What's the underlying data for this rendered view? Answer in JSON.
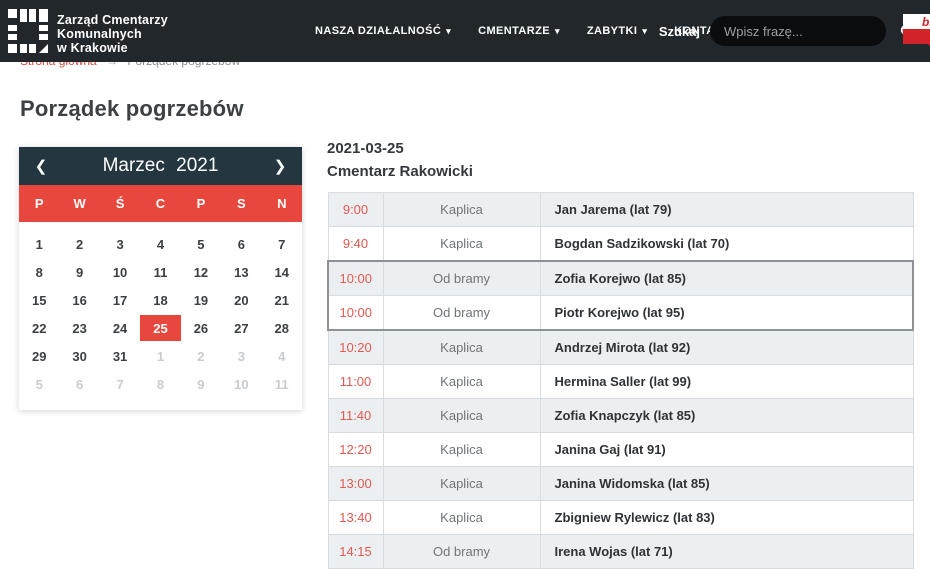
{
  "colors": {
    "header_bg": "#22272b",
    "calendar_header_bg": "#243640",
    "accent_red": "#e8473d",
    "time_red": "#e05a50",
    "row_alt_bg": "#eceff1",
    "highlight_border": "#8e9296",
    "bip_red": "#d2232a"
  },
  "header": {
    "logo_lines": [
      "Zarząd Cmentarzy",
      "Komunalnych",
      "w Krakowie"
    ],
    "nav": [
      {
        "label": "NASZA DZIAŁALNOŚĆ"
      },
      {
        "label": "CMENTARZE"
      },
      {
        "label": "ZABYTKI"
      },
      {
        "label": "KONTAKT"
      }
    ],
    "nav_caret": "▾",
    "search_label": "Szukaj",
    "search_placeholder": "Wpisz frazę...",
    "bip_label": "bip"
  },
  "breadcrumb": {
    "home": "Strona główna",
    "separator": "→",
    "current": "Porządek pogrzebów"
  },
  "page": {
    "title": "Porządek pogrzebów"
  },
  "calendar": {
    "prev_icon": "❮",
    "next_icon": "❯",
    "title": "Marzec 2021",
    "weekdays": [
      "P",
      "W",
      "Ś",
      "C",
      "P",
      "S",
      "N"
    ],
    "days": [
      {
        "d": "1"
      },
      {
        "d": "2"
      },
      {
        "d": "3"
      },
      {
        "d": "4"
      },
      {
        "d": "5"
      },
      {
        "d": "6"
      },
      {
        "d": "7"
      },
      {
        "d": "8"
      },
      {
        "d": "9"
      },
      {
        "d": "10"
      },
      {
        "d": "11"
      },
      {
        "d": "12"
      },
      {
        "d": "13"
      },
      {
        "d": "14"
      },
      {
        "d": "15"
      },
      {
        "d": "16"
      },
      {
        "d": "17"
      },
      {
        "d": "18"
      },
      {
        "d": "19"
      },
      {
        "d": "20"
      },
      {
        "d": "21"
      },
      {
        "d": "22"
      },
      {
        "d": "23"
      },
      {
        "d": "24"
      },
      {
        "d": "25",
        "selected": true
      },
      {
        "d": "26"
      },
      {
        "d": "27"
      },
      {
        "d": "28"
      },
      {
        "d": "29"
      },
      {
        "d": "30"
      },
      {
        "d": "31"
      },
      {
        "d": "1",
        "muted": true
      },
      {
        "d": "2",
        "muted": true
      },
      {
        "d": "3",
        "muted": true
      },
      {
        "d": "4",
        "muted": true
      },
      {
        "d": "5",
        "muted": true
      },
      {
        "d": "6",
        "muted": true
      },
      {
        "d": "7",
        "muted": true
      },
      {
        "d": "8",
        "muted": true
      },
      {
        "d": "9",
        "muted": true
      },
      {
        "d": "10",
        "muted": true
      },
      {
        "d": "11",
        "muted": true
      }
    ]
  },
  "schedule": {
    "date": "2021-03-25",
    "cemetery": "Cmentarz Rakowicki",
    "rows": [
      {
        "time": "9:00",
        "place": "Kaplica",
        "name": "Jan Jarema (lat 79)"
      },
      {
        "time": "9:40",
        "place": "Kaplica",
        "name": "Bogdan Sadzikowski (lat 70)"
      },
      {
        "time": "10:00",
        "place": "Od bramy",
        "name": "Zofia Korejwo (lat 85)",
        "group": "start"
      },
      {
        "time": "10:00",
        "place": "Od bramy",
        "name": "Piotr Korejwo (lat 95)",
        "group": "end"
      },
      {
        "time": "10:20",
        "place": "Kaplica",
        "name": "Andrzej Mirota (lat 92)"
      },
      {
        "time": "11:00",
        "place": "Kaplica",
        "name": "Hermina Saller (lat 99)"
      },
      {
        "time": "11:40",
        "place": "Kaplica",
        "name": "Zofia Knapczyk (lat 85)"
      },
      {
        "time": "12:20",
        "place": "Kaplica",
        "name": "Janina Gaj (lat 91)"
      },
      {
        "time": "13:00",
        "place": "Kaplica",
        "name": "Janina Widomska (lat 85)"
      },
      {
        "time": "13:40",
        "place": "Kaplica",
        "name": "Zbigniew Rylewicz (lat 83)"
      },
      {
        "time": "14:15",
        "place": "Od bramy",
        "name": "Irena Wojas (lat 71)"
      }
    ]
  }
}
